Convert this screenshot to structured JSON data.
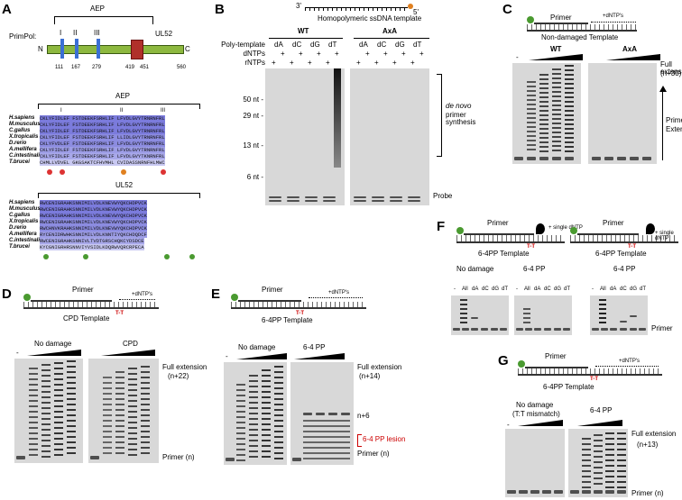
{
  "panelA": {
    "label": "A",
    "aep_top": "AEP",
    "domain_name": "PrimPol:",
    "n": "N",
    "c": "C",
    "motifs": [
      "I",
      "II",
      "III"
    ],
    "ul52": "UL52",
    "positions": [
      "111",
      "167",
      "279",
      "419",
      "451",
      "560"
    ],
    "aep_header": "AEP",
    "ul52_header": "UL52",
    "species": [
      "H.sapiens",
      "M.musculus",
      "C.gallus",
      "X.tropicalis",
      "D.rerio",
      "A.mellifera",
      "C.intestinalis",
      "T.brucei"
    ],
    "aep_seqs": [
      "CKLYFIDLEF  FSTDEEKFSRHLIF  LFVDLGVYTRNRNFRL",
      "CKLYFIDLEF  FSTDEEKFSRHLIF  LFVDLGVYTRNRNFRL",
      "CKLYFIDLEF  FSTDEEKFSRHLIF  LFVDLGVYTRNRNFRL",
      "CKLYFIDLEF  FSTDEEKFSRHLIF  LLIDLGVYTRNRNFRL",
      "CKLYFVDLEF  FSTDEEKFSRHLIF  LFVDLGVYTRNRNFRL",
      "CKLYFIDLEF  FSTDEEKFSRHLIF  LFVDLGVYTRNRNFRL",
      "CKLYFIDLEF  FSTDEEKFSRHLIF  LFVDLGVYTKNRNFRL",
      "CHMLLVDVEL  GKGSAKTCFHVMHL  CVIDASSNRNFHLMWC"
    ],
    "ul52_seqs": [
      "RWCENIGRAHKSNNIMILVDLKNEVWYQKCHDPVCK",
      "RWCENIGRAHKSNNIMILVDLKNEVWYQKCHDPVCK",
      "RWCENIGRAHKSNNIMILVDLKNEVWYQKCHDPVCK",
      "RWCENIGRAHKSNNIMILVDLKNEVWYQKCHDPVCK",
      "RWCHNVKRAHKSNNIMILVDLKNEVWYQKCHDPVCK",
      "RYCENIDRWHKSNNIMILVDLKNNTIYQKCHDQDCF",
      "RWCENIGRAHKSNNIVLTVDTGRSCHQKCYDSDCE",
      "KYCGNIGRHRSNNVIYVSIDLKDQRWVQRCRPECA"
    ]
  },
  "panelB": {
    "label": "B",
    "template_label": "Homopolymeric ssDNA template",
    "end3": "3'",
    "end5": "5'",
    "wt": "WT",
    "axa": "AxA",
    "row_poly": "Poly-template",
    "row_dntp": "dNTPs",
    "row_rntp": "rNTPs",
    "templates": [
      "dA",
      "dC",
      "dG",
      "dT"
    ],
    "plus": "+",
    "markers": [
      "50 nt -",
      "29 nt -",
      "13 nt -",
      "6 nt -"
    ],
    "denovo": "de novo",
    "primer_synth": "primer synthesis",
    "probe": "Probe"
  },
  "panelC": {
    "label": "C",
    "primer": "Primer",
    "dntps": "+dNTP's",
    "template": "Non-damaged Template",
    "wt": "WT",
    "axa": "AxA",
    "minus": "-",
    "full_ext": "Full extension",
    "full_ext_n": "(n+30)",
    "primer_ext": "Primer",
    "primer_ext2": "Extension"
  },
  "panelD": {
    "label": "D",
    "primer": "Primer",
    "dntps": "+dNTP's",
    "template": "CPD Template",
    "tt": "T-T",
    "no_damage": "No damage",
    "cpd": "CPD",
    "minus": "-",
    "full_ext": "Full extension",
    "full_ext_n": "(n+22)",
    "primer_n": "Primer (n)"
  },
  "panelE": {
    "label": "E",
    "primer": "Primer",
    "dntps": "+dNTP's",
    "template": "6-4PP Template",
    "tt": "T-T",
    "no_damage": "No damage",
    "pp": "6-4 PP",
    "minus": "-",
    "full_ext": "Full extension",
    "full_ext_n": "(n+14)",
    "n6": "n+6",
    "lesion": "6-4 PP lesion",
    "primer_n": "Primer (n)"
  },
  "panelF": {
    "label": "F",
    "primer": "Primer",
    "single": "+ single dNTP",
    "template": "6-4PP Template",
    "tt": "T-T",
    "no_damage": "No damage",
    "pp": "6-4 PP",
    "lanes": [
      "-",
      "All",
      "dA",
      "dC",
      "dG",
      "dT"
    ],
    "primer_lbl": "Primer"
  },
  "panelG": {
    "label": "G",
    "primer": "Primer",
    "dntps": "+dNTP's",
    "template": "6-4PP Template",
    "tt": "T-T",
    "no_damage": "No damage",
    "mismatch": "(T:T mismatch)",
    "pp": "6-4 PP",
    "minus": "-",
    "full_ext": "Full extension",
    "full_ext_n": "(n+13)",
    "primer_n": "Primer (n)"
  }
}
